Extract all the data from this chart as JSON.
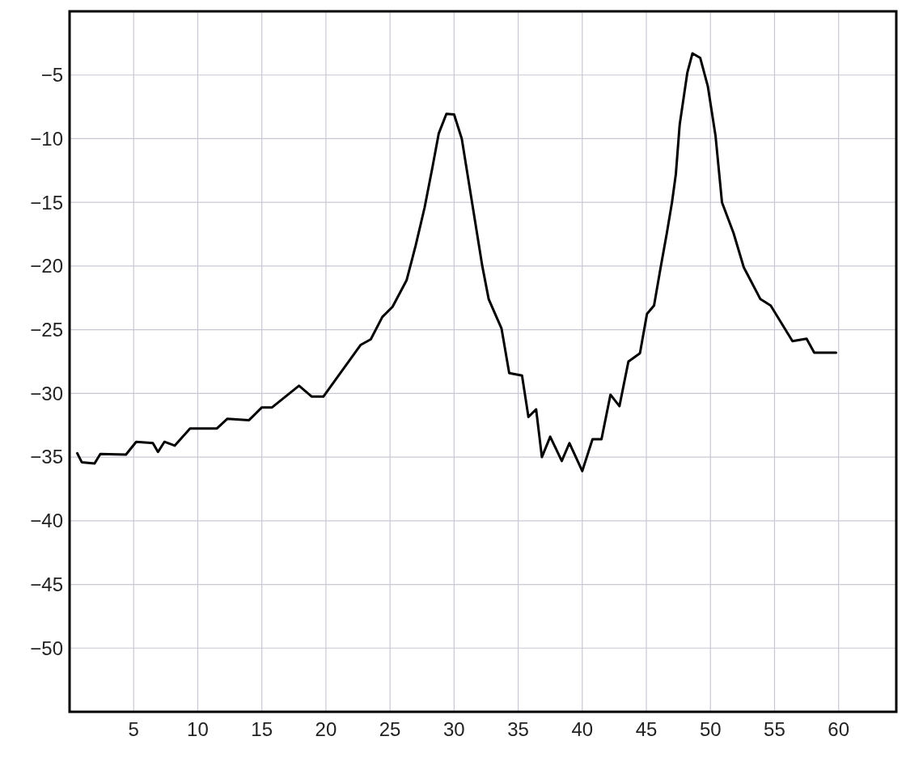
{
  "chart_data": {
    "type": "line",
    "xlim": [
      0,
      64.5
    ],
    "ylim": [
      -55,
      0
    ],
    "xticks": [
      5,
      10,
      15,
      20,
      25,
      30,
      35,
      40,
      45,
      50,
      55,
      60
    ],
    "yticks": [
      -5,
      -10,
      -15,
      -20,
      -25,
      -30,
      -35,
      -40,
      -45,
      -50
    ],
    "grid": true,
    "marker": "none",
    "line_style": "solid",
    "series": [
      {
        "color": "#000000",
        "x": [
          0.6,
          0.95,
          1.95,
          2.4,
          4.4,
          5.2,
          6.5,
          6.9,
          7.4,
          8.2,
          9.4,
          11.5,
          12.3,
          14,
          15,
          15.8,
          17.9,
          18.9,
          19.8,
          22.7,
          23.5,
          24.4,
          25.2,
          26.3,
          27,
          27.7,
          28.3,
          28.8,
          29.4,
          30,
          30.6,
          32.2,
          32.7,
          33.7,
          34.3,
          35.3,
          35.8,
          36.4,
          36.85,
          37.5,
          38.4,
          39,
          40,
          40.8,
          41.5,
          42.2,
          42.9,
          43.6,
          44.5,
          45.05,
          45.6,
          46.1,
          46.6,
          47,
          47.3,
          47.6,
          48.2,
          48.6,
          49.2,
          49.8,
          50.4,
          50.9,
          51.8,
          52.6,
          53.9,
          54.7,
          56.4,
          57.5,
          58.1,
          59.8
        ],
        "values": [
          -34.7,
          -35.4,
          -35.5,
          -34.75,
          -34.8,
          -33.8,
          -33.9,
          -34.6,
          -33.8,
          -34.1,
          -32.75,
          -32.75,
          -32,
          -32.1,
          -31.1,
          -31.1,
          -29.4,
          -30.25,
          -30.25,
          -26.2,
          -25.75,
          -24,
          -23.2,
          -21.1,
          -18.4,
          -15.4,
          -12.3,
          -9.6,
          -8.05,
          -8.1,
          -10,
          -20,
          -22.6,
          -24.9,
          -28.4,
          -28.6,
          -31.85,
          -31.25,
          -35,
          -33.4,
          -35.3,
          -33.9,
          -36.1,
          -33.6,
          -33.6,
          -30.1,
          -31,
          -27.5,
          -26.85,
          -23.75,
          -23.1,
          -20.2,
          -17.4,
          -15,
          -12.8,
          -8.9,
          -4.8,
          -3.3,
          -3.65,
          -5.9,
          -9.8,
          -15,
          -17.4,
          -20.1,
          -22.6,
          -23.1,
          -25.9,
          -25.7,
          -26.8,
          -26.8
        ]
      }
    ]
  }
}
